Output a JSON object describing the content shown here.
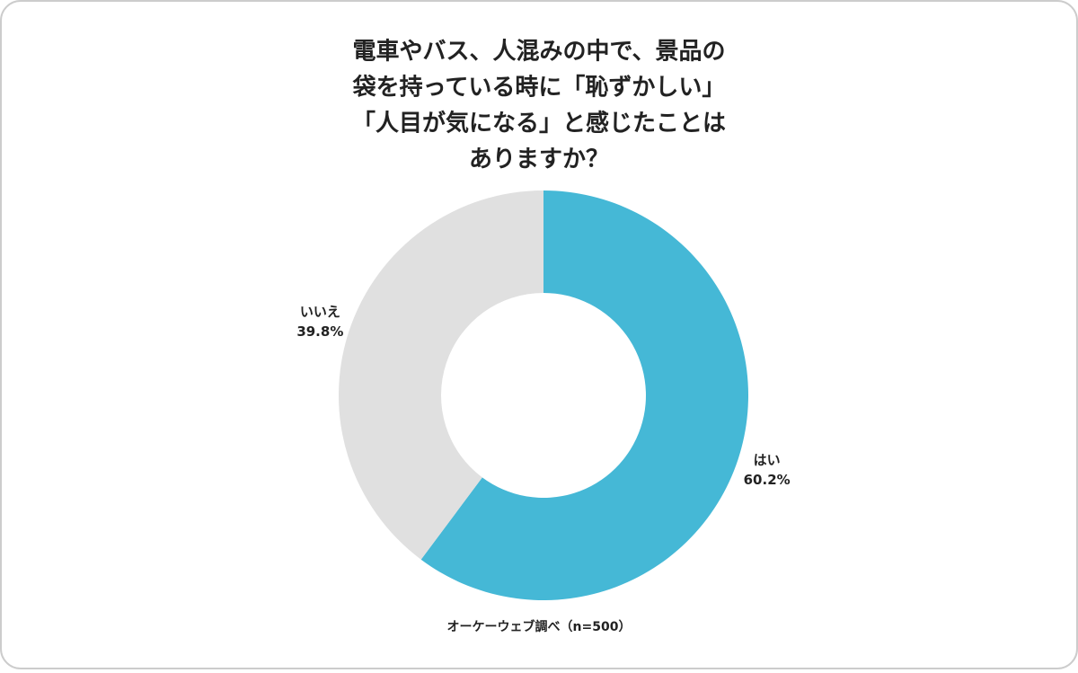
{
  "chart_data": {
    "type": "pie",
    "donut": true,
    "title": [
      "電車やバス、人混みの中で、景品の",
      "袋を持っている時に「恥ずかしい」",
      "「人目が気になる」と感じたことは",
      "ありますか？"
    ],
    "categories": [
      "はい",
      "いいえ"
    ],
    "values": [
      60.2,
      39.8
    ],
    "value_labels": [
      "60.2%",
      "39.8%"
    ],
    "colors": [
      "#45b8d6",
      "#e0e0e0"
    ],
    "note": "オーケーウェブ調べ（n=500）"
  }
}
